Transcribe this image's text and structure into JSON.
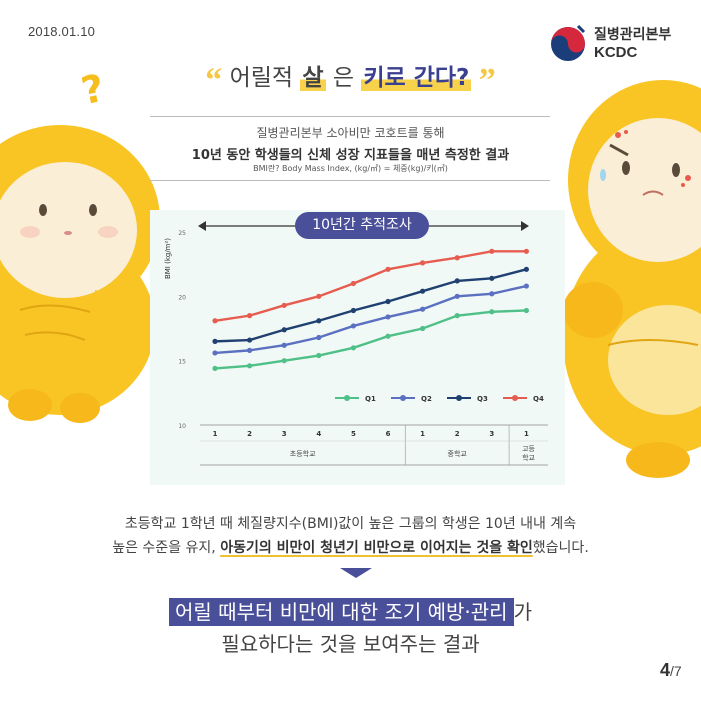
{
  "date": "2018.01.10",
  "logo": {
    "kor": "질병관리본부",
    "eng": "KCDC"
  },
  "title": {
    "open_quote": "“",
    "part1": "어릴적 ",
    "hl1": "살",
    "part2": "은 ",
    "hl2": "키로 간다?",
    "close_quote": "”"
  },
  "subtitle": {
    "line1": "질병관리본부 소아비만 코호트를 통해",
    "line2": "10년 동안 학생들의 신체 성장 지표들을 매년 측정한 결과",
    "line3": "BMI란? Body Mass Index, (kg/㎡) = 체중(kg)/키(㎡)"
  },
  "chart_data": {
    "type": "line",
    "banner": "10년간 추적조사",
    "ylabel": "BMI (kg/m²)",
    "ylim": [
      10,
      25
    ],
    "yticks": [
      10,
      15,
      20,
      25
    ],
    "x_positions": [
      "1",
      "2",
      "3",
      "4",
      "5",
      "6",
      "1",
      "2",
      "3",
      "1"
    ],
    "groups": [
      {
        "label": "초등학교"
      },
      {
        "label": "중학교"
      },
      {
        "label": "고등\n학교"
      }
    ],
    "group_label_high": [
      "고등",
      "학교"
    ],
    "series": [
      {
        "name": "Q1",
        "color": "#4fc087",
        "values": [
          14.4,
          14.6,
          15.0,
          15.4,
          16.0,
          16.9,
          17.5,
          18.5,
          18.8,
          18.9
        ]
      },
      {
        "name": "Q2",
        "color": "#5b70c0",
        "values": [
          15.6,
          15.8,
          16.2,
          16.8,
          17.7,
          18.4,
          19.0,
          20.0,
          20.2,
          20.8
        ]
      },
      {
        "name": "Q3",
        "color": "#1f4070",
        "values": [
          16.5,
          16.6,
          17.4,
          18.1,
          18.9,
          19.6,
          20.4,
          21.2,
          21.4,
          22.1
        ]
      },
      {
        "name": "Q4",
        "color": "#e65c4f",
        "values": [
          18.1,
          18.5,
          19.3,
          20.0,
          21.0,
          22.1,
          22.6,
          23.0,
          23.5,
          23.5
        ]
      }
    ],
    "legend_position": "bottom-right"
  },
  "body": {
    "line1": "초등학교 1학년 때 체질량지수(BMI)값이 높은 그룹의 학생은 10년 내내 계속",
    "line2_pre": "높은 수준을 유지, ",
    "line2_bold": "아동기의 비만이 청년기 비만으로 이어지는 것을 확인",
    "line2_post": "했습니다."
  },
  "conclusion": {
    "line1_box": "어릴 때부터 비만에 대한 조기 예방·관리",
    "line1_post": "가",
    "line2": "필요하다는 것을 보여주는 결과"
  },
  "page": {
    "current": "4",
    "total": "/7"
  }
}
